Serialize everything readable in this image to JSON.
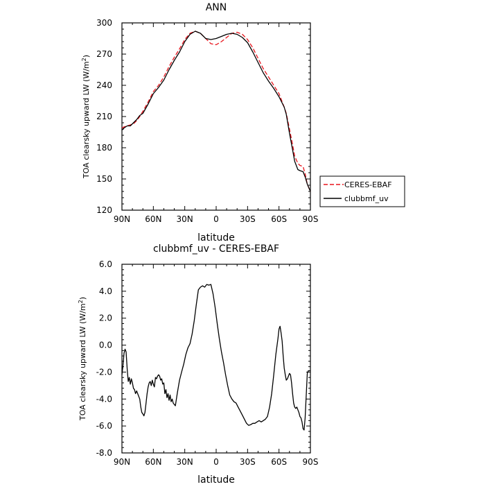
{
  "chart_data": [
    {
      "type": "line",
      "title": "ANN",
      "xlabel": "latitude",
      "ylabel_main": "TOA clearsky upward LW (W/m",
      "ylabel_sup": "2",
      "ylabel_close": ")",
      "xlim": [
        90,
        -90
      ],
      "ylim": [
        120,
        300
      ],
      "xticks": [
        90,
        60,
        30,
        0,
        -30,
        -60,
        -90
      ],
      "xticklabels": [
        "90N",
        "60N",
        "30N",
        "0",
        "30S",
        "60S",
        "90S"
      ],
      "yticks": [
        120,
        150,
        180,
        210,
        240,
        270,
        300
      ],
      "yticklabels": [
        "120",
        "150",
        "180",
        "210",
        "240",
        "270",
        "300"
      ],
      "legend": "outside-right",
      "series": [
        {
          "name": "CERES-EBAF",
          "color": "#e8141c",
          "dash": "dashed",
          "x": [
            90,
            88,
            85,
            82,
            79,
            76,
            73,
            70,
            65,
            60,
            55,
            50,
            45,
            40,
            35,
            30,
            25,
            20,
            15,
            10,
            5,
            0,
            -5,
            -10,
            -15,
            -20,
            -25,
            -30,
            -35,
            -40,
            -45,
            -50,
            -55,
            -60,
            -65,
            -67,
            -70,
            -73,
            -75,
            -78,
            -80,
            -83,
            -85,
            -87,
            -90
          ],
          "y": [
            199,
            200,
            201,
            202,
            203,
            206,
            210,
            215,
            224,
            234,
            240,
            248,
            258,
            267,
            275,
            284,
            290,
            292,
            290,
            285,
            280,
            279,
            282,
            286,
            290,
            291,
            289,
            284,
            276,
            266,
            256,
            248,
            240,
            232,
            219,
            213,
            198,
            183,
            172,
            165,
            163,
            162,
            155,
            145,
            138
          ]
        },
        {
          "name": "clubbmf_uv",
          "color": "#000000",
          "dash": "solid",
          "x": [
            90,
            88,
            85,
            82,
            79,
            76,
            73,
            70,
            65,
            60,
            55,
            50,
            45,
            40,
            35,
            30,
            25,
            20,
            15,
            10,
            5,
            0,
            -5,
            -10,
            -15,
            -20,
            -25,
            -30,
            -35,
            -40,
            -45,
            -50,
            -55,
            -60,
            -65,
            -67,
            -70,
            -73,
            -75,
            -78,
            -80,
            -83,
            -85,
            -87,
            -90
          ],
          "y": [
            197,
            199,
            201,
            201,
            204,
            207,
            211,
            213,
            222,
            232,
            238,
            245,
            255,
            264,
            272,
            282,
            289,
            292,
            290,
            285,
            284,
            285,
            287,
            289,
            290,
            289,
            286,
            281,
            272,
            262,
            252,
            244,
            237,
            229,
            219,
            212,
            194,
            178,
            167,
            159,
            158,
            157,
            152,
            145,
            138
          ]
        }
      ]
    },
    {
      "type": "line",
      "title": "clubbmf_uv - CERES-EBAF",
      "xlabel": "latitude",
      "ylabel_main": "TOA clearsky upward LW (W/m",
      "ylabel_sup": "2",
      "ylabel_close": ")",
      "xlim": [
        90,
        -90
      ],
      "ylim": [
        -8,
        6
      ],
      "xticks": [
        90,
        60,
        30,
        0,
        -30,
        -60,
        -90
      ],
      "xticklabels": [
        "90N",
        "60N",
        "30N",
        "0",
        "30S",
        "60S",
        "90S"
      ],
      "yticks": [
        -8,
        -6,
        -4,
        -2,
        0,
        2,
        4,
        6
      ],
      "yticklabels": [
        "-8.0",
        "-6.0",
        "-4.0",
        "-2.0",
        "0.0",
        "2.0",
        "4.0",
        "6.0"
      ],
      "series": [
        {
          "name": "clubbmf_uv - CERES-EBAF",
          "color": "#000000",
          "dash": "solid",
          "x": [
            90,
            89,
            88,
            87,
            86,
            85,
            84,
            83,
            82,
            81,
            80,
            79,
            78,
            77,
            76,
            75,
            73,
            72,
            71,
            70,
            69,
            68,
            67,
            66,
            65,
            64,
            63,
            62,
            61,
            60,
            59,
            58,
            57,
            56,
            55,
            54,
            53,
            52,
            51,
            50,
            49,
            48,
            47,
            46,
            45,
            44,
            43,
            42,
            41,
            40,
            39,
            37,
            35,
            33,
            31,
            29,
            27,
            25,
            23,
            21,
            19,
            17,
            15,
            13,
            11,
            9,
            7,
            5,
            3,
            1,
            0,
            -1,
            -3,
            -5,
            -7,
            -9,
            -11,
            -13,
            -15,
            -17,
            -19,
            -21,
            -23,
            -25,
            -27,
            -29,
            -31,
            -33,
            -35,
            -37,
            -39,
            -41,
            -43,
            -45,
            -47,
            -49,
            -51,
            -53,
            -55,
            -57,
            -59,
            -60,
            -61,
            -62,
            -63,
            -64,
            -65,
            -66,
            -67,
            -68,
            -69,
            -70,
            -71,
            -72,
            -73,
            -74,
            -75,
            -76,
            -77,
            -78,
            -79,
            -80,
            -81,
            -82,
            -83,
            -84,
            -85,
            -86,
            -87,
            -88,
            -89,
            -90
          ],
          "y": [
            -2.2,
            -1.5,
            -0.6,
            -0.3,
            -0.5,
            -1.8,
            -2.7,
            -2.4,
            -2.9,
            -2.5,
            -2.8,
            -3.2,
            -3.3,
            -3.6,
            -3.4,
            -3.6,
            -4.0,
            -4.6,
            -5.0,
            -5.1,
            -5.25,
            -5.0,
            -4.3,
            -3.6,
            -3.1,
            -2.8,
            -2.7,
            -3.0,
            -2.6,
            -2.9,
            -3.1,
            -2.4,
            -2.5,
            -2.3,
            -2.2,
            -2.3,
            -2.6,
            -2.5,
            -2.9,
            -2.8,
            -3.6,
            -3.3,
            -3.9,
            -3.6,
            -4.1,
            -3.7,
            -4.2,
            -4.0,
            -4.3,
            -4.4,
            -4.5,
            -3.5,
            -2.6,
            -2.0,
            -1.4,
            -0.7,
            -0.2,
            0.1,
            0.8,
            1.8,
            3.0,
            4.1,
            4.3,
            4.4,
            4.3,
            4.5,
            4.45,
            4.5,
            3.8,
            2.8,
            2.2,
            1.6,
            0.5,
            -0.5,
            -1.3,
            -2.2,
            -3.0,
            -3.7,
            -4.0,
            -4.2,
            -4.3,
            -4.6,
            -4.9,
            -5.2,
            -5.5,
            -5.8,
            -5.95,
            -5.9,
            -5.8,
            -5.8,
            -5.7,
            -5.6,
            -5.7,
            -5.6,
            -5.5,
            -5.3,
            -4.6,
            -3.6,
            -2.2,
            -0.7,
            0.5,
            1.2,
            1.4,
            0.9,
            0.3,
            -0.8,
            -1.7,
            -2.2,
            -2.6,
            -2.5,
            -2.3,
            -2.1,
            -2.2,
            -2.8,
            -3.6,
            -4.3,
            -4.6,
            -4.7,
            -4.6,
            -4.8,
            -5.0,
            -5.3,
            -5.4,
            -5.7,
            -6.2,
            -6.3,
            -5.4,
            -3.7,
            -2.1,
            -1.9,
            -1.9,
            -1.9
          ]
        }
      ]
    }
  ]
}
